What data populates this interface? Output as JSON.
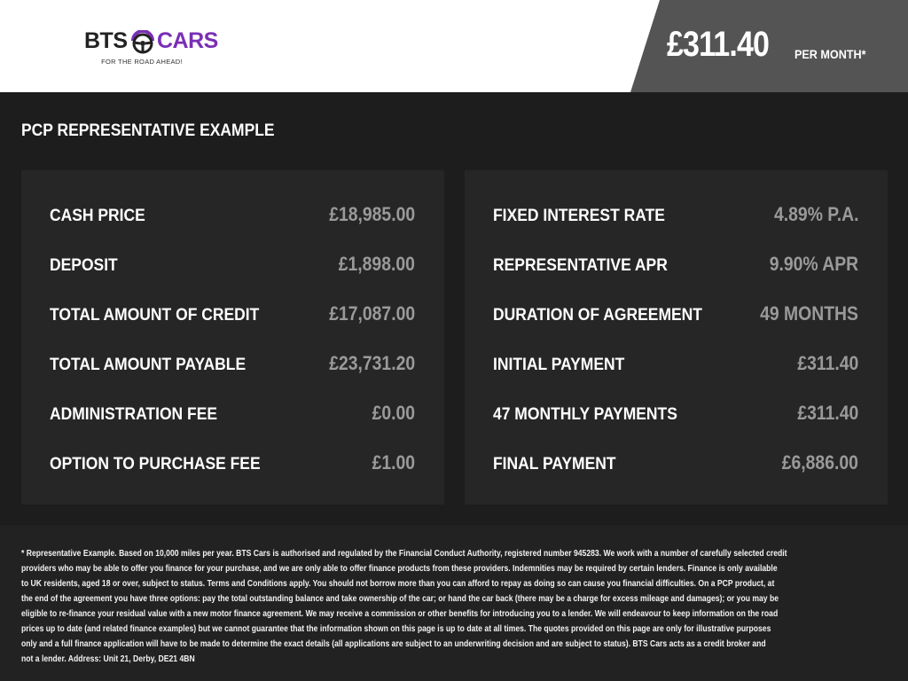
{
  "brand": {
    "name_left": "BTS",
    "name_right": "CARS",
    "tagline": "FOR THE ROAD AHEAD!",
    "accent": "#7a2fb5"
  },
  "header": {
    "price": "£311.40",
    "per_month": "PER MONTH*"
  },
  "section_title": "PCP REPRESENTATIVE EXAMPLE",
  "left_panel": [
    {
      "label": "CASH PRICE",
      "value": "£18,985.00"
    },
    {
      "label": "DEPOSIT",
      "value": "£1,898.00"
    },
    {
      "label": "TOTAL AMOUNT OF CREDIT",
      "value": "£17,087.00"
    },
    {
      "label": "TOTAL AMOUNT PAYABLE",
      "value": "£23,731.20"
    },
    {
      "label": "ADMINISTRATION FEE",
      "value": "£0.00"
    },
    {
      "label": "OPTION TO PURCHASE FEE",
      "value": "£1.00"
    }
  ],
  "right_panel": [
    {
      "label": "FIXED INTEREST RATE",
      "value": "4.89% P.A."
    },
    {
      "label": "REPRESENTATIVE APR",
      "value": "9.90% APR"
    },
    {
      "label": "DURATION OF AGREEMENT",
      "value": "49 MONTHS"
    },
    {
      "label": "INITIAL PAYMENT",
      "value": "£311.40"
    },
    {
      "label": "47 MONTHLY PAYMENTS",
      "value": "£311.40"
    },
    {
      "label": "FINAL PAYMENT",
      "value": "£6,886.00"
    }
  ],
  "disclaimer_lines": [
    "* Representative Example. Based on 10,000 miles per year. BTS Cars is authorised and regulated by the Financial Conduct Authority, registered number 945283. We work with a number of carefully selected credit",
    "providers who may be able to offer you finance for your purchase, and we are only able to offer finance products from these providers. Indemnities may be required by certain lenders. Finance is only available",
    "to UK residents, aged 18 or over, subject to status. Terms and Conditions apply. You should not borrow more than you can afford to repay as doing so can cause you financial difficulties. On a PCP product, at",
    "the end of the agreement you have three options: pay the total outstanding balance and take ownership of the car; or hand the car back (there may be a charge for excess mileage and damages); or you may be",
    "eligible to re-finance your residual value with a new motor finance agreement. We may receive a commission or other benefits for introducing you to a lender. We will endeavour to keep information on the road",
    "prices up to date (and related finance examples) but we cannot guarantee that the information shown on this page is up to date at all times. The quotes provided on this page are only for illustrative purposes",
    "only and a full finance application will have to be made to determine the exact details (all applications are subject to an underwriting decision and are subject to status). BTS Cars acts as a credit broker and",
    "not a lender. Address: Unit 21, Derby, DE21 4BN"
  ]
}
